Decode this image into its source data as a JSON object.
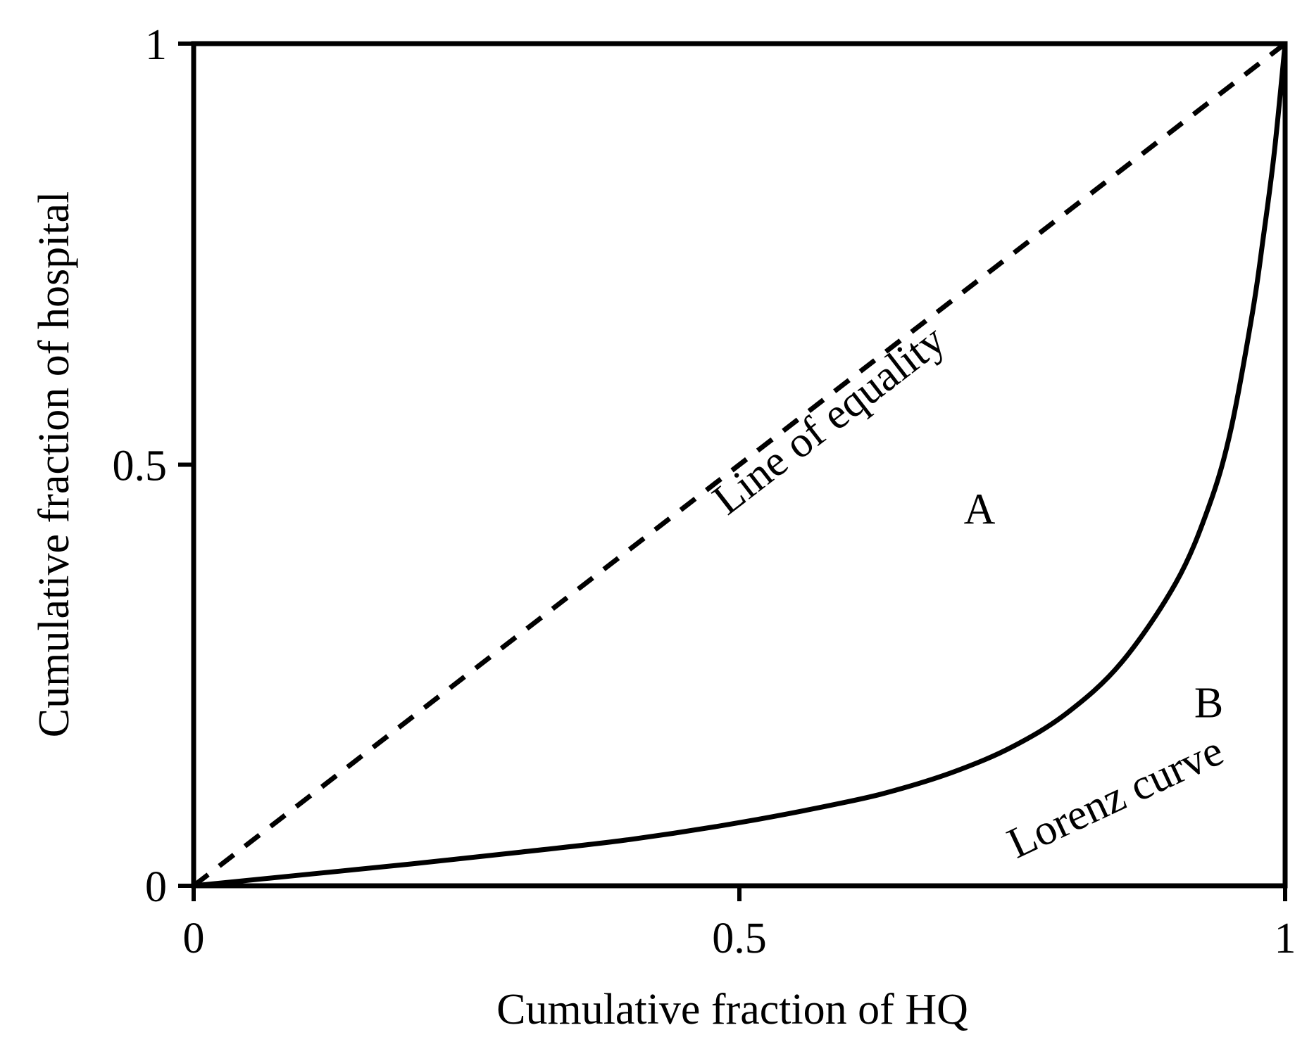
{
  "chart_data": {
    "type": "line",
    "xlabel": "Cumulative fraction of HQ",
    "ylabel": "Cumulative fraction of hospital",
    "xlim": [
      0,
      1
    ],
    "ylim": [
      0,
      1
    ],
    "x_ticks": [
      {
        "value": 0,
        "label": "0"
      },
      {
        "value": 0.5,
        "label": "0.5"
      },
      {
        "value": 1,
        "label": "1"
      }
    ],
    "y_ticks": [
      {
        "value": 0,
        "label": "0"
      },
      {
        "value": 0.5,
        "label": "0.5"
      },
      {
        "value": 1,
        "label": "1"
      }
    ],
    "grid": false,
    "series": [
      {
        "id": "equality",
        "style": "dashed",
        "color": "#000000",
        "x": [
          0,
          1
        ],
        "y": [
          0,
          1
        ]
      },
      {
        "id": "lorenz",
        "style": "solid",
        "color": "#000000",
        "x": [
          0,
          0.1,
          0.2,
          0.3,
          0.4,
          0.5,
          0.6,
          0.65,
          0.7,
          0.75,
          0.8,
          0.85,
          0.9,
          0.93,
          0.95,
          0.97,
          0.98,
          0.99,
          1.0
        ],
        "y": [
          0,
          0.013,
          0.026,
          0.04,
          0.055,
          0.075,
          0.1,
          0.116,
          0.137,
          0.165,
          0.205,
          0.265,
          0.36,
          0.45,
          0.54,
          0.68,
          0.77,
          0.87,
          1.0
        ]
      }
    ],
    "annotations": [
      {
        "id": "equality-label",
        "text": "Line of equality",
        "x": 0.59,
        "y": 0.54,
        "rotate_along": "equality"
      },
      {
        "id": "lorenz-label",
        "text": "Lorenz curve",
        "x": 0.85,
        "y": 0.09,
        "rotate_along": "lorenz"
      },
      {
        "id": "region-a",
        "text": "A",
        "x": 0.72,
        "y": 0.43
      },
      {
        "id": "region-b",
        "text": "B",
        "x": 0.93,
        "y": 0.2
      }
    ]
  }
}
